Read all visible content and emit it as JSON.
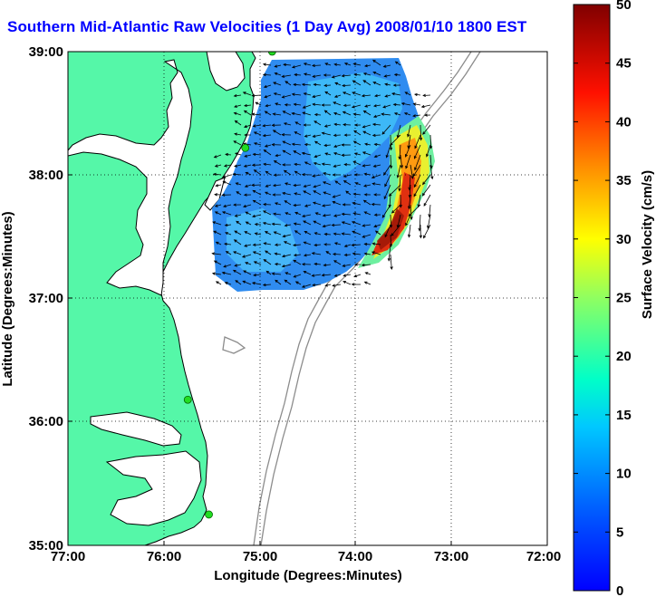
{
  "title": "Southern Mid-Atlantic Raw Velocities (1 Day Avg) 2008/01/10 1800 EST",
  "x_axis": {
    "label": "Longitude (Degrees:Minutes)",
    "ticks": [
      "77:00",
      "76:00",
      "75:00",
      "74:00",
      "73:00",
      "72:00"
    ]
  },
  "y_axis": {
    "label": "Latitude (Degrees:Minutes)",
    "ticks": [
      "39:00",
      "38:00",
      "37:00",
      "36:00",
      "35:00"
    ]
  },
  "colorbar": {
    "label": "Surface Velocity (cm/s)",
    "ticks": [
      "50",
      "45",
      "40",
      "35",
      "30",
      "25",
      "20",
      "15",
      "10",
      "5",
      "0"
    ],
    "min": 0,
    "max": 50,
    "colormap": "jet"
  },
  "map_extent": {
    "lon": [
      -77,
      -72
    ],
    "lat": [
      35,
      39
    ]
  },
  "colors": {
    "land": "#55f7a8",
    "coast": "#000000",
    "bathymetry": "#8c8c8c",
    "title": "#0000ff",
    "station": "#22dd22"
  },
  "stations": [
    {
      "lon": -74.87,
      "lat": 39.0
    },
    {
      "lon": -75.15,
      "lat": 38.22
    },
    {
      "lon": -75.75,
      "lat": 36.18
    },
    {
      "lon": -75.53,
      "lat": 35.25
    }
  ]
}
